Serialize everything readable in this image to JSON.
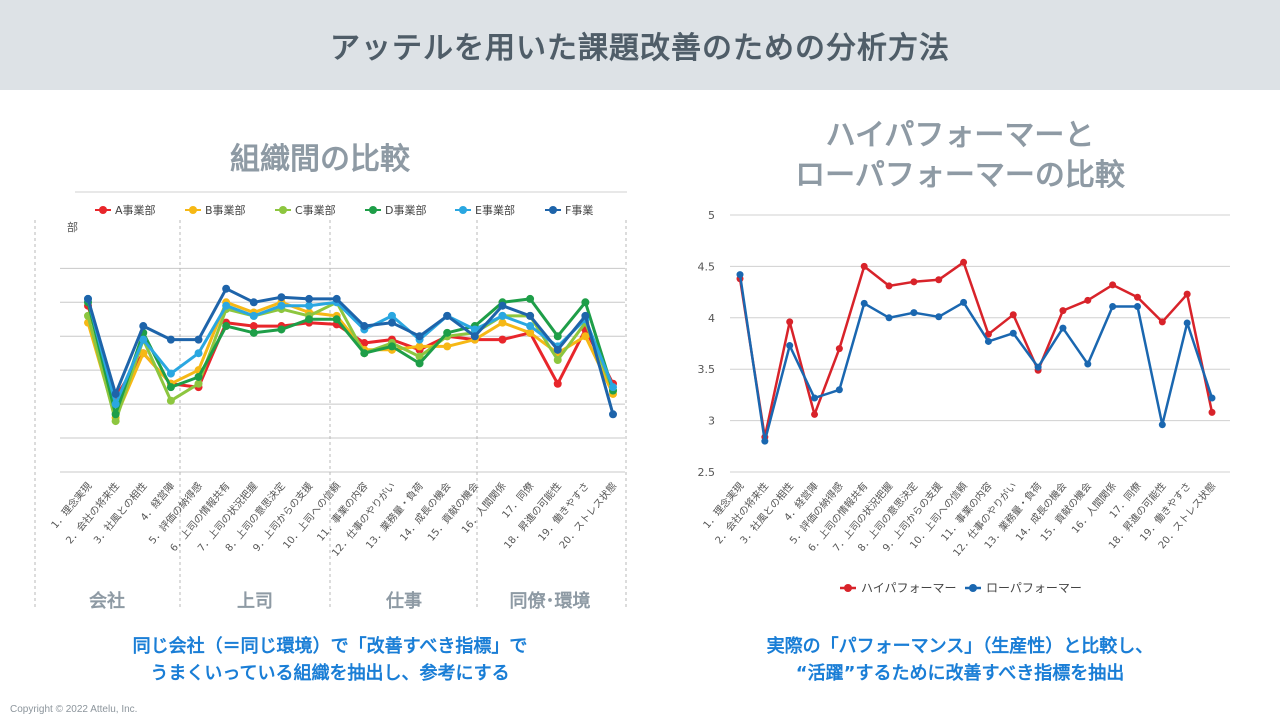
{
  "header": {
    "title": "アッテルを用いた課題改善のための分析方法"
  },
  "left_panel": {
    "title": "組織間の比較",
    "caption_line1": "同じ会社（＝同じ環境）で「改善すべき指標」で",
    "caption_line2": "うまくいっている組織を抽出し、参考にする"
  },
  "right_panel": {
    "title_line1": "ハイパフォーマーと",
    "title_line2": "ローパフォーマーの比較",
    "caption_line1": "実際の「パフォーマンス」（生産性）と比較し、",
    "caption_line2": "“活躍”するために改善すべき指標を抽出"
  },
  "footer": {
    "copyright": "Copyright © 2022 Attelu, Inc."
  },
  "chart_data": [
    {
      "type": "line",
      "title": "組織間の比較",
      "ylabel": "部",
      "categories": [
        "1．理念実現",
        "2．会社の将来性",
        "3．社風との相性",
        "4．経営陣",
        "5．評価の納得感",
        "6．上司の情報共有",
        "7．上司の状況把握",
        "8．上司の意思決定",
        "9．上司からの支援",
        "10．上司への信頼",
        "11．事業の内容",
        "12．仕事のやりがい",
        "13．業務量・負荷",
        "14．成長の機会",
        "15．貢献の機会",
        "16．人間関係",
        "17．同僚",
        "18．昇進の可能性",
        "19．働きやすさ",
        "20．ストレス状態"
      ],
      "groups": [
        "会社",
        "上司",
        "仕事",
        "同僚･環境"
      ],
      "ylim": [
        0,
        6.6
      ],
      "grid": true,
      "legend_position": "top",
      "series": [
        {
          "name": "A事業部",
          "color": "#e8262b",
          "values": [
            4.9,
            2.2,
            3.5,
            2.6,
            2.5,
            4.4,
            4.3,
            4.3,
            4.4,
            4.35,
            3.8,
            3.9,
            3.6,
            4.0,
            3.9,
            3.9,
            4.1,
            2.6,
            4.2,
            2.6
          ]
        },
        {
          "name": "B事業部",
          "color": "#f6b815",
          "values": [
            4.4,
            1.6,
            3.5,
            2.6,
            3.0,
            5.0,
            4.7,
            5.0,
            4.7,
            4.6,
            3.6,
            3.6,
            3.7,
            3.7,
            3.9,
            4.4,
            4.1,
            3.5,
            4.0,
            2.3
          ]
        },
        {
          "name": "C事業部",
          "color": "#8dc63f",
          "values": [
            4.6,
            1.5,
            3.9,
            2.1,
            2.6,
            4.8,
            4.6,
            4.8,
            4.6,
            5.0,
            3.5,
            3.8,
            3.4,
            4.0,
            4.1,
            4.6,
            4.6,
            3.3,
            4.4,
            2.4
          ]
        },
        {
          "name": "D事業部",
          "color": "#1e9e48",
          "values": [
            5.0,
            1.7,
            4.1,
            2.5,
            2.8,
            4.3,
            4.1,
            4.2,
            4.5,
            4.5,
            3.5,
            3.7,
            3.2,
            4.1,
            4.3,
            5.0,
            5.1,
            4.0,
            5.0,
            2.4
          ]
        },
        {
          "name": "E事業部",
          "color": "#2aa7e1",
          "values": [
            5.1,
            2.0,
            3.9,
            2.9,
            3.5,
            4.9,
            4.6,
            4.9,
            4.9,
            5.0,
            4.2,
            4.6,
            3.9,
            4.6,
            4.2,
            4.6,
            4.3,
            3.7,
            4.5,
            2.5
          ]
        },
        {
          "name": "F事業",
          "color": "#1e64aa",
          "values": [
            5.1,
            2.3,
            4.3,
            3.9,
            3.9,
            5.4,
            5.0,
            5.15,
            5.1,
            5.1,
            4.3,
            4.4,
            4.0,
            4.6,
            4.0,
            4.9,
            4.6,
            3.6,
            4.6,
            1.7
          ]
        }
      ]
    },
    {
      "type": "line",
      "title": "ハイパフォーマーとローパフォーマーの比較",
      "categories": [
        "1．理念実現",
        "2．会社の将来性",
        "3．社風との相性",
        "4．経営陣",
        "5．評価の納得感",
        "6．上司の情報共有",
        "7．上司の状況把握",
        "8．上司の意思決定",
        "9．上司からの支援",
        "10．上司への信頼",
        "11．事業の内容",
        "12．仕事のやりがい",
        "13．業務量・負荷",
        "14．成長の機会",
        "15．貢献の機会",
        "16．人間関係",
        "17．同僚",
        "18．昇進の可能性",
        "19．働きやすさ",
        "20．ストレス状態"
      ],
      "ylim": [
        2.5,
        5
      ],
      "yticks": [
        "5",
        "4.5",
        "4",
        "3.5",
        "3",
        "2.5"
      ],
      "grid": true,
      "legend_position": "bottom",
      "series": [
        {
          "name": "ハイパフォーマー",
          "color": "#d8232a",
          "values": [
            4.38,
            2.84,
            3.96,
            3.06,
            3.7,
            4.5,
            4.31,
            4.35,
            4.37,
            4.54,
            3.84,
            4.03,
            3.49,
            4.07,
            4.17,
            4.32,
            4.2,
            3.96,
            4.23,
            3.08
          ]
        },
        {
          "name": "ローパフォーマー",
          "color": "#1a67b0",
          "values": [
            4.42,
            2.8,
            3.73,
            3.22,
            3.3,
            4.14,
            4.0,
            4.05,
            4.01,
            4.15,
            3.77,
            3.85,
            3.52,
            3.9,
            3.55,
            4.11,
            4.11,
            2.96,
            3.95,
            3.22
          ]
        }
      ]
    }
  ]
}
